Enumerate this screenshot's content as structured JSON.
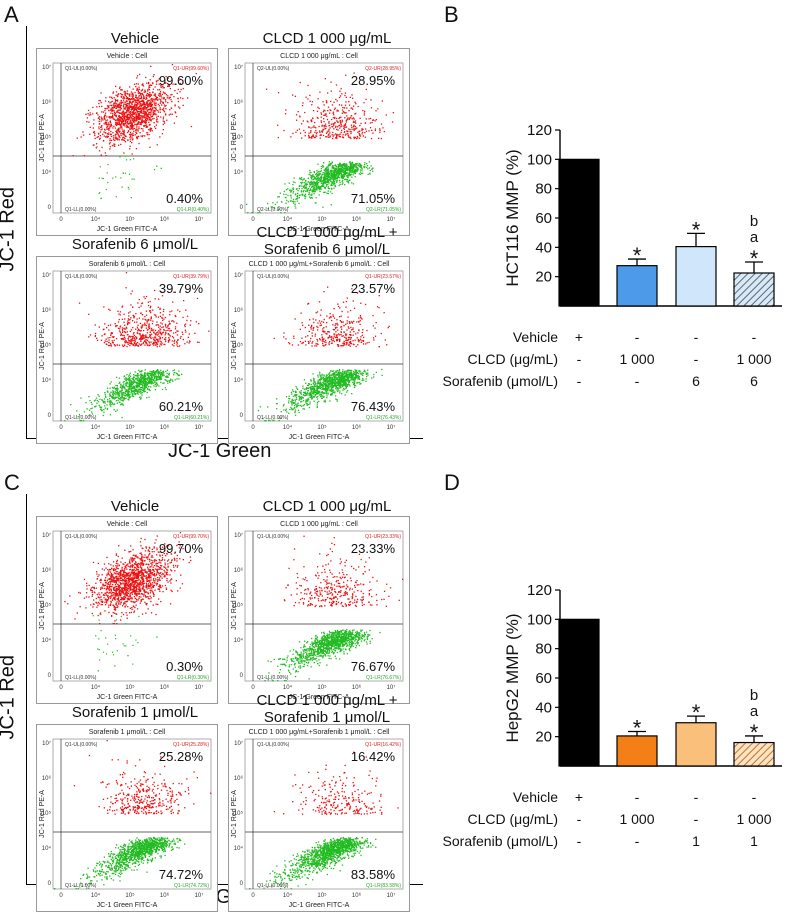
{
  "fig_A": {
    "letter": "A",
    "ylabel": "JC-1 Red",
    "xlabel": "JC-1 Green",
    "plots": [
      {
        "title": "Vehicle",
        "header": "Vehicle : Cell",
        "ur": "99.60%",
        "lr": "0.40%",
        "ul_small": "Q1-UL(0.00%)",
        "ur_small": "Q1-UR(99.60%)",
        "ll_small": "Q1-LL(0.00%)",
        "lr_small": "Q1-LR(0.40%)",
        "axis_x": "JC-1 Green FITC-A",
        "axis_y": "JC-1 Red PE-A",
        "red_frac": 0.996
      },
      {
        "title": "CLCD 1 000 μg/mL",
        "header": "CLCD 1 000 μg/mL : Cell",
        "ur": "28.95%",
        "lr": "71.05%",
        "ul_small": "Q2-UL(0.00%)",
        "ur_small": "Q2-UR(28.95%)",
        "ll_small": "Q2-LL(0.00%)",
        "lr_small": "Q2-LR(71.05%)",
        "axis_x": "JC-1 Green FITC-A",
        "axis_y": "JC-1 Red PE-A",
        "red_frac": 0.2895
      },
      {
        "title": "Sorafenib 6 μmol/L",
        "header": "Sorafenib 6 μmol/L : Cell",
        "ur": "39.79%",
        "lr": "60.21%",
        "ul_small": "Q1-UL(0.00%)",
        "ur_small": "Q1-UR(39.79%)",
        "ll_small": "Q1-LL(0.00%)",
        "lr_small": "Q1-LR(60.21%)",
        "axis_x": "JC-1 Green FITC-A",
        "axis_y": "JC-1 Red PE-A",
        "red_frac": 0.3979
      },
      {
        "title": "CLCD 1 000 μg/mL +\nSorafenib 6 μmol/L",
        "header": "CLCD 1 000 μg/mL+Sorafenib 6 μmol/L : Cell",
        "ur": "23.57%",
        "lr": "76.43%",
        "ul_small": "Q1-UL(0.00%)",
        "ur_small": "Q1-UR(23.57%)",
        "ll_small": "Q1-LL(0.00%)",
        "lr_small": "Q1-LR(76.43%)",
        "axis_x": "JC-1 Green FITC-A",
        "axis_y": "JC-1 Red PE-A",
        "red_frac": 0.2357
      }
    ]
  },
  "fig_C": {
    "letter": "C",
    "ylabel": "JC-1 Red",
    "xlabel": "JC-1 Green",
    "plots": [
      {
        "title": "Vehicle",
        "header": "Vehicle : Cell",
        "ur": "99.70%",
        "lr": "0.30%",
        "ul_small": "Q1-UL(0.00%)",
        "ur_small": "Q1-UR(99.70%)",
        "ll_small": "Q1-LL(0.00%)",
        "lr_small": "Q1-LR(0.30%)",
        "axis_x": "JC-1 Green FITC-A",
        "axis_y": "JC-1 Red PE-A",
        "red_frac": 0.997
      },
      {
        "title": "CLCD 1 000 μg/mL",
        "header": "CLCD 1 000 μg/mL : Cell",
        "ur": "23.33%",
        "lr": "76.67%",
        "ul_small": "Q1-UL(0.00%)",
        "ur_small": "Q1-UR(23.33%)",
        "ll_small": "Q1-LL(0.00%)",
        "lr_small": "Q1-LR(76.67%)",
        "axis_x": "JC-1 Green FITC-A",
        "axis_y": "JC-1 Red PE-A",
        "red_frac": 0.2333
      },
      {
        "title": "Sorafenib 1 μmol/L",
        "header": "Sorafenib 1 μmol/L : Cell",
        "ur": "25.28%",
        "lr": "74.72%",
        "ul_small": "Q1-UL(0.00%)",
        "ur_small": "Q1-UR(25.28%)",
        "ll_small": "Q1-LL(0.00%)",
        "lr_small": "Q1-LR(74.72%)",
        "axis_x": "JC-1 Green FITC-A",
        "axis_y": "JC-1 Red PE-A",
        "red_frac": 0.2528
      },
      {
        "title": "CLCD 1 000 μg/mL +\nSorafenib 1 μmol/L",
        "header": "CLCD 1 000 μg/mL+Sorafenib 1 μmol/L : Cell",
        "ur": "16.42%",
        "lr": "83.58%",
        "ul_small": "Q1-UL(0.00%)",
        "ur_small": "Q1-UR(16.42%)",
        "ll_small": "Q1-LL(0.00%)",
        "lr_small": "Q1-LR(83.58%)",
        "axis_x": "JC-1 Green FITC-A",
        "axis_y": "JC-1 Red PE-A",
        "red_frac": 0.1642
      }
    ]
  },
  "axis_ticks": [
    "0",
    "10⁴",
    "10⁵",
    "10⁶",
    "10⁷"
  ],
  "chart_data": [
    {
      "panel": "B",
      "type": "bar",
      "ylabel": "HCT116 MMP (%)",
      "ylim": [
        0,
        120
      ],
      "yticks": [
        20,
        40,
        60,
        80,
        100,
        120
      ],
      "categories": [
        "Vehicle",
        "CLCD 1 000 μg/mL",
        "Sorafenib 6 μmol/L",
        "CLCD + Sorafenib"
      ],
      "values": [
        100,
        27.5,
        40.5,
        22.5
      ],
      "errors": [
        0,
        4.5,
        9,
        7.5
      ],
      "colors": [
        "#000000",
        "#4d9be8",
        "#cfe6fb",
        "#dbe9f5"
      ],
      "hatch": [
        false,
        false,
        false,
        true
      ],
      "hatch_color": "#2f4a63",
      "annotations": [
        "",
        "*",
        "*",
        "*\na\nb"
      ],
      "treatment_rows": [
        {
          "label": "Vehicle",
          "cells": [
            "+",
            "-",
            "-",
            "-"
          ]
        },
        {
          "label": "CLCD (μg/mL)",
          "cells": [
            "-",
            "1 000",
            "-",
            "1 000"
          ]
        },
        {
          "label": "Sorafenib (μmol/L)",
          "cells": [
            "-",
            "-",
            "6",
            "6"
          ]
        }
      ]
    },
    {
      "panel": "D",
      "type": "bar",
      "ylabel": "HepG2 MMP (%)",
      "ylim": [
        0,
        120
      ],
      "yticks": [
        20,
        40,
        60,
        80,
        100,
        120
      ],
      "categories": [
        "Vehicle",
        "CLCD 1 000 μg/mL",
        "Sorafenib 1 μmol/L",
        "CLCD + Sorafenib"
      ],
      "values": [
        100,
        20.5,
        29.5,
        16
      ],
      "errors": [
        0,
        3,
        4.5,
        4.5
      ],
      "colors": [
        "#000000",
        "#f57f17",
        "#fbbf7c",
        "#fde3c4"
      ],
      "hatch": [
        false,
        false,
        false,
        true
      ],
      "hatch_color": "#b05a00",
      "annotations": [
        "",
        "*",
        "*",
        "*\na\nb"
      ],
      "treatment_rows": [
        {
          "label": "Vehicle",
          "cells": [
            "+",
            "-",
            "-",
            "-"
          ]
        },
        {
          "label": "CLCD (μg/mL)",
          "cells": [
            "-",
            "1 000",
            "-",
            "1 000"
          ]
        },
        {
          "label": "Sorafenib (μmol/L)",
          "cells": [
            "-",
            "-",
            "1",
            "1"
          ]
        }
      ]
    }
  ],
  "panel_letters": {
    "B": "B",
    "D": "D"
  }
}
